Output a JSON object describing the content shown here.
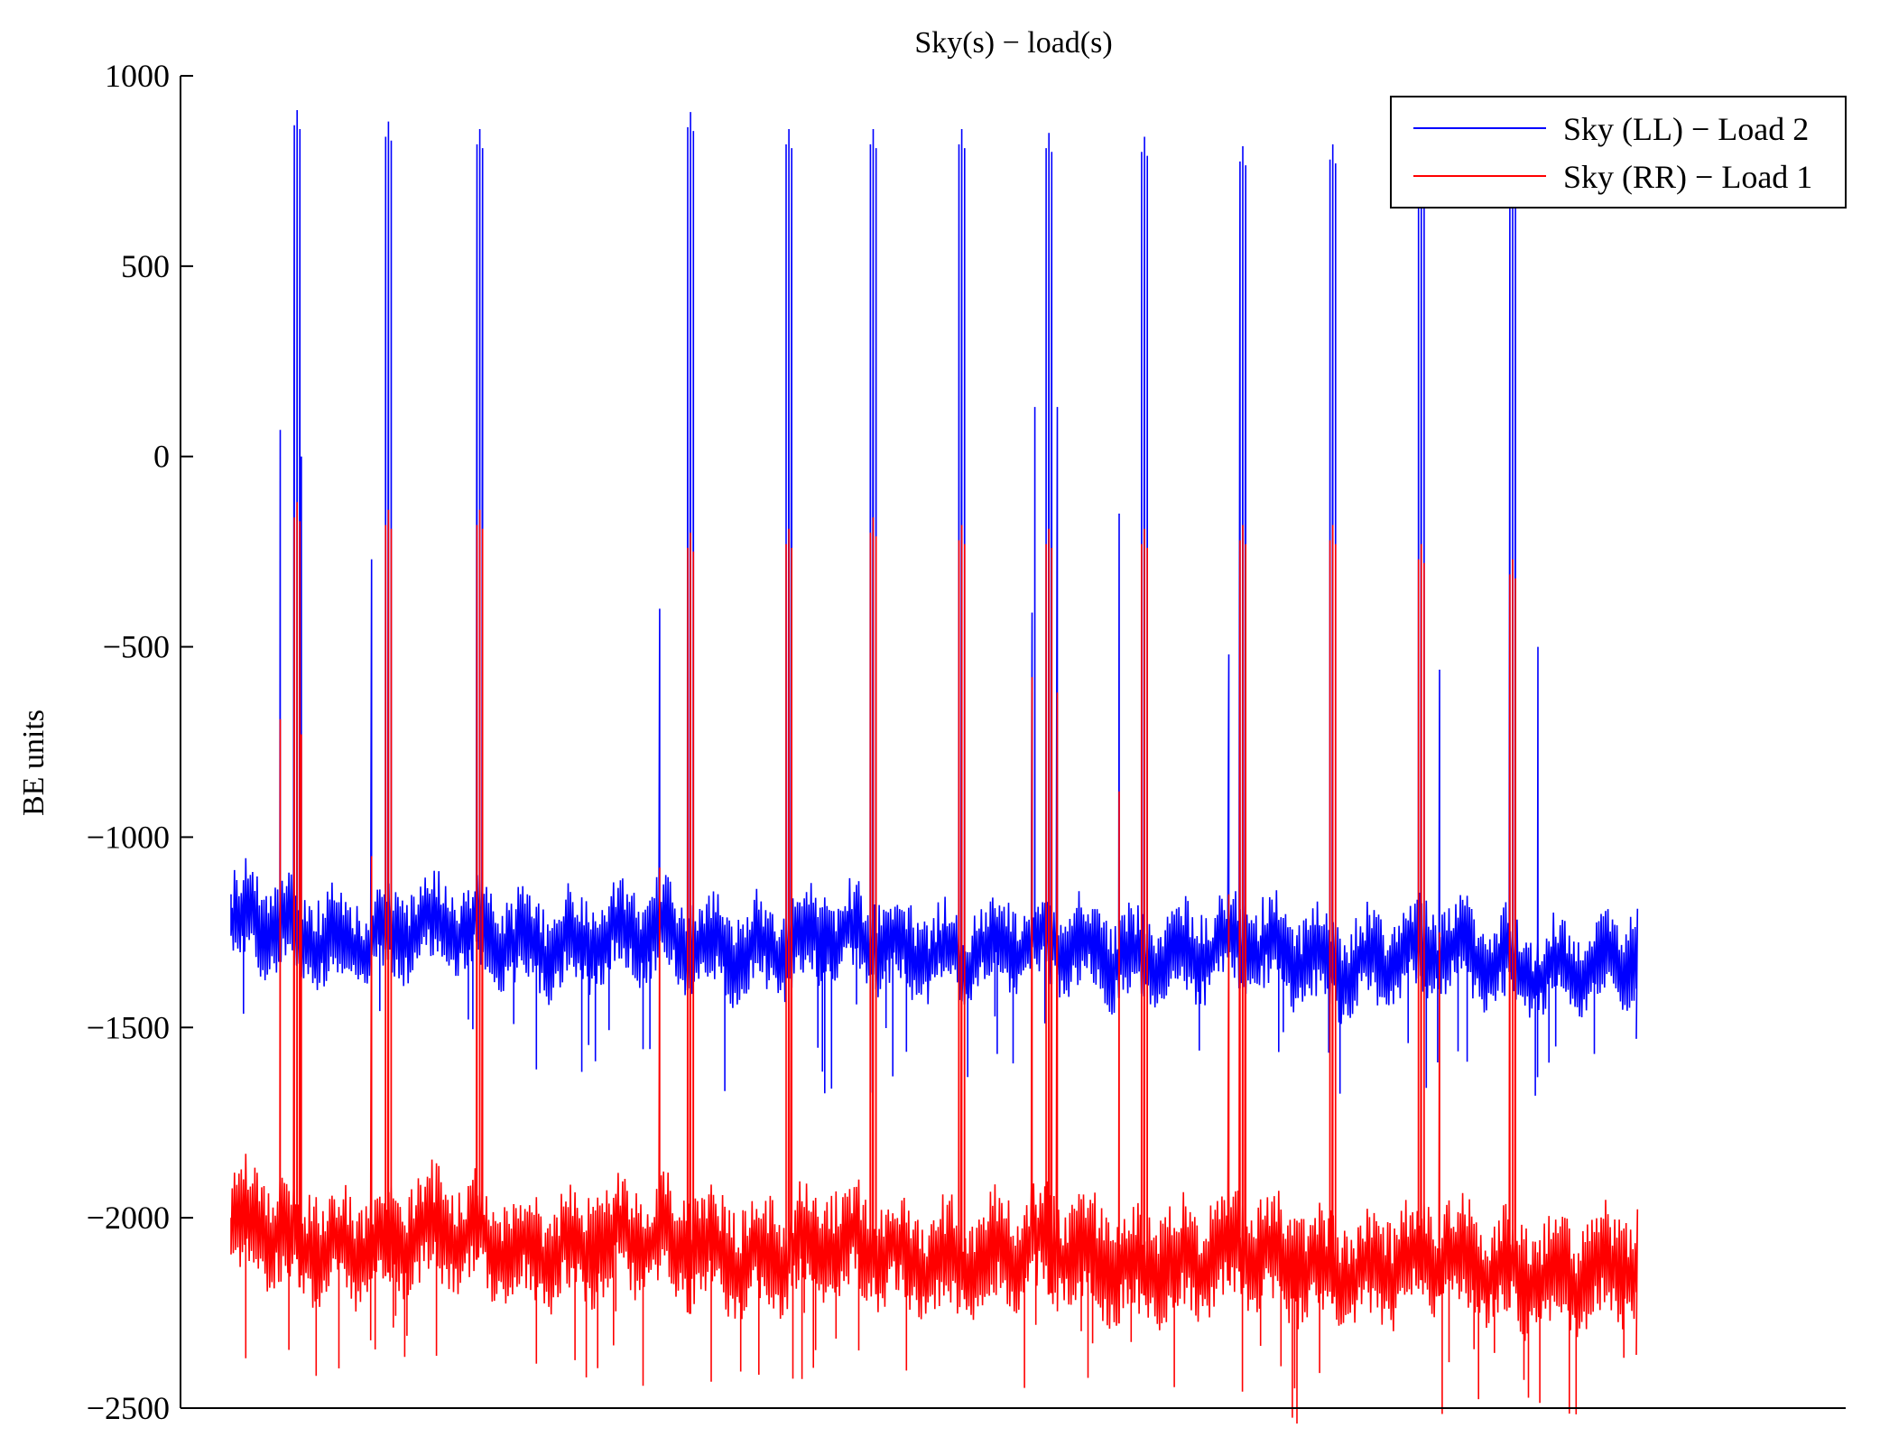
{
  "chart_data": {
    "type": "line",
    "title": "Sky(s) − load(s)",
    "xlabel": "",
    "ylabel": "BE units",
    "ylim": [
      -2500,
      1000
    ],
    "xlim": [
      0,
      1
    ],
    "yticks": [
      1000,
      500,
      0,
      -500,
      -1000,
      -1500,
      -2000,
      -2500
    ],
    "ytick_labels": [
      "1000",
      "500",
      "0",
      "−500",
      "−1000",
      "−1500",
      "−2000",
      "−2500"
    ],
    "grid": false,
    "legend_position": "top-right",
    "n_cycles": 620,
    "series": [
      {
        "name": "Sky (LL) − Load 2",
        "color": "#0000ff",
        "base_level": -1250,
        "trend_end": -1340,
        "oscillation_low": 110,
        "oscillation_high": 90,
        "start_value": -1150,
        "end_value": -1530,
        "spike_positions": [
          0.045,
          0.11,
          0.175,
          0.325,
          0.395,
          0.455,
          0.518,
          0.58,
          0.648,
          0.718,
          0.782,
          0.845,
          0.91
        ],
        "spike_values": [
          870,
          840,
          820,
          865,
          820,
          820,
          820,
          810,
          800,
          775,
          780,
          700,
          690
        ],
        "secondary_spikes": [
          {
            "x": 0.035,
            "y": 70
          },
          {
            "x": 0.05,
            "y": 0
          },
          {
            "x": 0.1,
            "y": -270
          },
          {
            "x": 0.305,
            "y": -400
          },
          {
            "x": 0.57,
            "y": -410
          },
          {
            "x": 0.572,
            "y": 130
          },
          {
            "x": 0.588,
            "y": 130
          },
          {
            "x": 0.632,
            "y": -150
          },
          {
            "x": 0.71,
            "y": -520
          },
          {
            "x": 0.86,
            "y": -560
          },
          {
            "x": 0.93,
            "y": -500
          }
        ]
      },
      {
        "name": "Sky (RR) − Load 1",
        "color": "#ff0000",
        "base_level": -2050,
        "trend_end": -2150,
        "oscillation_low": 130,
        "oscillation_high": 110,
        "start_value": -2000,
        "end_value": -2360,
        "spike_positions": [
          0.045,
          0.11,
          0.175,
          0.325,
          0.395,
          0.455,
          0.518,
          0.58,
          0.648,
          0.718,
          0.782,
          0.845,
          0.91
        ],
        "spike_values": [
          -160,
          -180,
          -180,
          -240,
          -230,
          -200,
          -220,
          -230,
          -230,
          -220,
          -220,
          -270,
          -310
        ],
        "secondary_spikes": [
          {
            "x": 0.035,
            "y": -690
          },
          {
            "x": 0.05,
            "y": -730
          },
          {
            "x": 0.1,
            "y": -1050
          },
          {
            "x": 0.305,
            "y": -1080
          },
          {
            "x": 0.57,
            "y": -580
          },
          {
            "x": 0.588,
            "y": -620
          },
          {
            "x": 0.632,
            "y": -880
          },
          {
            "x": 0.71,
            "y": -1150
          },
          {
            "x": 0.86,
            "y": -1250
          }
        ]
      }
    ]
  }
}
